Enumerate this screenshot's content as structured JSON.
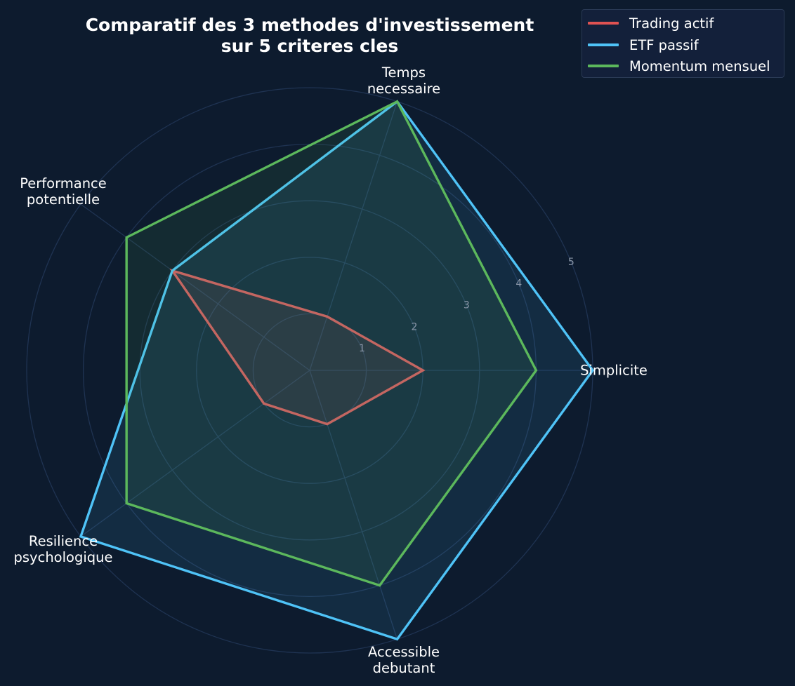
{
  "chart_data": {
    "type": "radar",
    "title": [
      "Comparatif des 3 methodes d'investissement",
      "sur 5 criteres cles"
    ],
    "axes": [
      [
        "Simplicite"
      ],
      [
        "Temps",
        "necessaire"
      ],
      [
        "Performance",
        "potentielle"
      ],
      [
        "Resilience",
        "psychologique"
      ],
      [
        "Accessible",
        "debutant"
      ]
    ],
    "rlim": [
      0,
      5
    ],
    "r_ticks": [
      "1",
      "2",
      "3",
      "4",
      "5"
    ],
    "grid": true,
    "legend_position": "top-right",
    "series": [
      {
        "name": "Trading actif",
        "values": [
          2,
          1,
          3,
          1,
          1
        ],
        "color": "#e05252"
      },
      {
        "name": "ETF passif",
        "values": [
          5,
          5,
          3,
          5,
          5
        ],
        "color": "#4fc3f7"
      },
      {
        "name": "Momentum mensuel",
        "values": [
          4,
          5,
          4,
          4,
          4
        ],
        "color": "#5cb85c"
      }
    ]
  },
  "colors": {
    "background": "#0d1b2e",
    "grid": "#1f3352",
    "tick": "#8b97a8"
  }
}
